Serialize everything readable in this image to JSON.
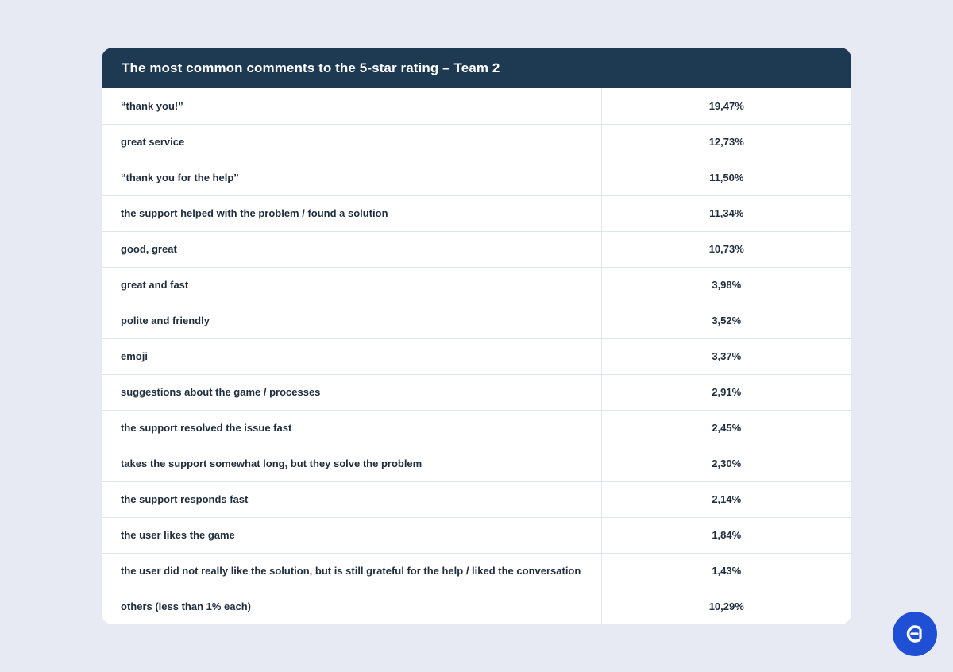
{
  "chart_data": {
    "type": "table",
    "title": "The most common comments to the 5-star rating – Team 2",
    "rows": [
      {
        "label": "“thank you!”",
        "value": "19,47%"
      },
      {
        "label": "great service",
        "value": "12,73%"
      },
      {
        "label": "“thank you for the help”",
        "value": "11,50%"
      },
      {
        "label": "the support helped with the problem / found a solution",
        "value": "11,34%"
      },
      {
        "label": "good, great",
        "value": "10,73%"
      },
      {
        "label": "great and fast",
        "value": "3,98%"
      },
      {
        "label": "polite and friendly",
        "value": "3,52%"
      },
      {
        "label": "emoji",
        "value": "3,37%"
      },
      {
        "label": "suggestions about the game / processes",
        "value": "2,91%"
      },
      {
        "label": "the support resolved the issue fast",
        "value": "2,45%"
      },
      {
        "label": "takes the support somewhat long, but they solve the problem",
        "value": "2,30%"
      },
      {
        "label": "the support responds fast",
        "value": "2,14%"
      },
      {
        "label": "the user likes the game",
        "value": "1,84%"
      },
      {
        "label": "the user did not really like the solution, but is still grateful for the help / liked the conversation",
        "value": "1,43%"
      },
      {
        "label": "others (less than 1% each)",
        "value": "10,29%"
      }
    ]
  },
  "colors": {
    "background": "#e7eaf3",
    "header": "#1e3a52",
    "text": "#1f2d3d",
    "logo": "#1f4fd4"
  },
  "logo": {
    "icon": "brand-logo-icon"
  }
}
